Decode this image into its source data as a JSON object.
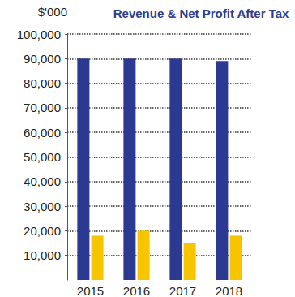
{
  "chart_data": {
    "type": "bar",
    "title": "Revenue & Net Profit After Tax",
    "y_label": "$'000",
    "categories": [
      "2015",
      "2016",
      "2017",
      "2018"
    ],
    "series": [
      {
        "color": "#2b3990",
        "values": [
          90000,
          90000,
          90000,
          89000
        ]
      },
      {
        "color": "#f7c400",
        "values": [
          18000,
          20000,
          15000,
          18000
        ]
      }
    ],
    "ylim": [
      0,
      100000
    ],
    "yticks": [
      {
        "value": 10000,
        "label": "10,000"
      },
      {
        "value": 20000,
        "label": "20,000"
      },
      {
        "value": 30000,
        "label": "30,000"
      },
      {
        "value": 40000,
        "label": "40,000"
      },
      {
        "value": 50000,
        "label": "50,000"
      },
      {
        "value": 60000,
        "label": "60,000"
      },
      {
        "value": 70000,
        "label": "70,000"
      },
      {
        "value": 80000,
        "label": "80,000"
      },
      {
        "value": 90000,
        "label": "90,000"
      },
      {
        "value": 100000,
        "label": "100,000"
      }
    ],
    "grid": true
  }
}
